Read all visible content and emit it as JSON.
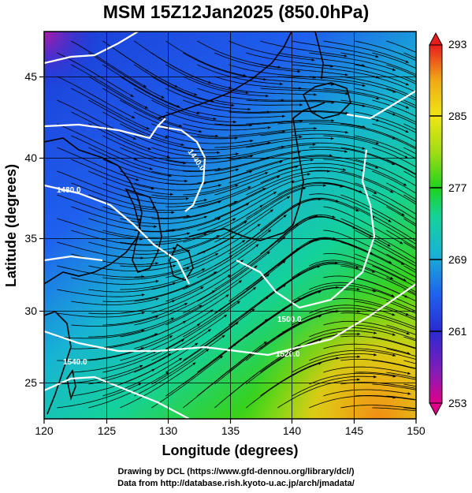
{
  "title": "MSM 15Z12Jan2025 (850.0hPa)",
  "x_axis": {
    "label": "Longitude (degrees)",
    "range": [
      120,
      150
    ],
    "ticks": [
      "120",
      "125",
      "130",
      "135",
      "140",
      "145",
      "150"
    ]
  },
  "y_axis": {
    "label": "Latitude  (degrees)",
    "range": [
      22.5,
      48
    ],
    "ticks": [
      "25",
      "30",
      "35",
      "40",
      "45"
    ]
  },
  "colorbar": {
    "min": 253,
    "max": 293,
    "ticks": [
      "293",
      "285",
      "277",
      "269",
      "261",
      "253"
    ],
    "colors": [
      "#e0008a",
      "#8c1ab4",
      "#2a2ad2",
      "#1f60ee",
      "#18b4d2",
      "#14d29a",
      "#1ed21e",
      "#a0dc14",
      "#f0e614",
      "#f0aa14",
      "#f06414",
      "#e81e1e"
    ]
  },
  "contour_labels": [
    "1440.0",
    "1480.0",
    "1500.0",
    "1520.0",
    "1540.0"
  ],
  "credits": {
    "line1": "Drawing by DCL (https://www.gfd-dennou.org/library/dcl/)",
    "line2": "Data from http://database.rish.kyoto-u.ac.jp/arch/jmadata/"
  }
}
